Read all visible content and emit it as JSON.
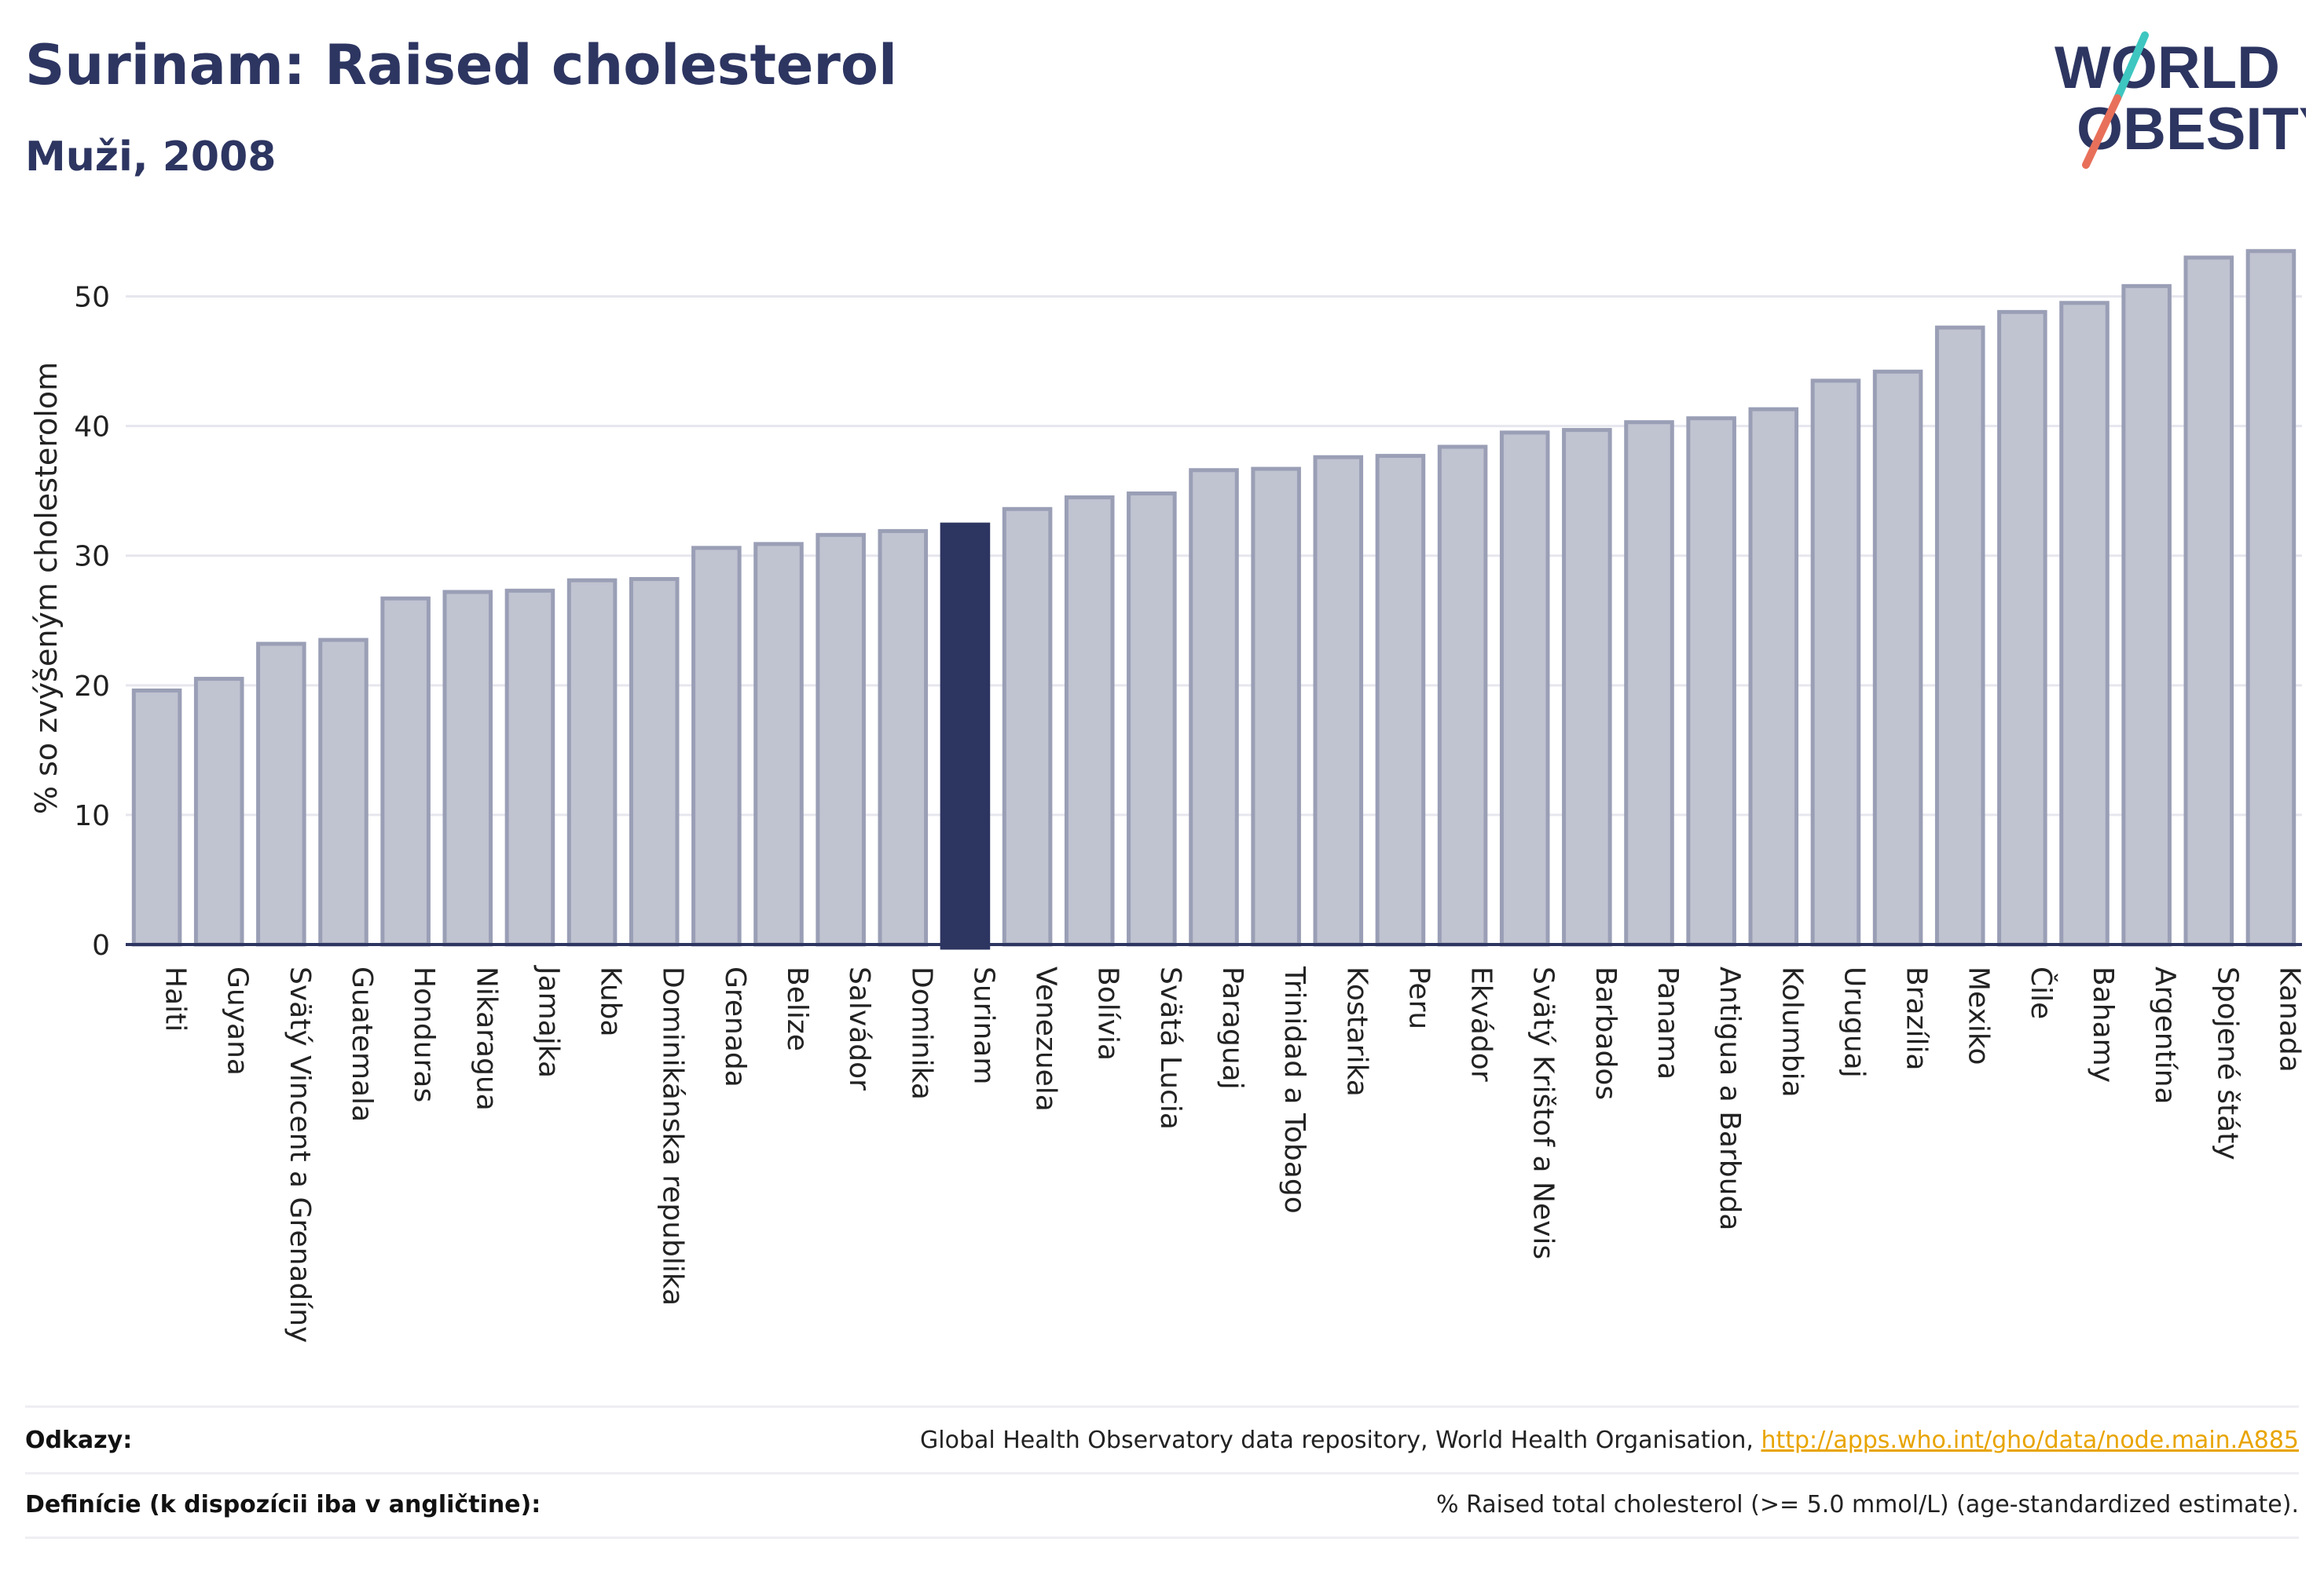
{
  "header": {
    "title": "Surinam: Raised cholesterol",
    "subtitle": "Muži, 2008"
  },
  "logo": {
    "line1": "WORLD",
    "line2": "OBESITY",
    "colors": {
      "text": "#2d3561",
      "slash_top": "#3ec6c0",
      "slash_bottom": "#e8705a"
    }
  },
  "colors": {
    "bar": "#c0c3d0",
    "bar_border": "#9a9fb6",
    "highlight": "#2d3561",
    "grid": "#e6e6ee",
    "axis": "#2d3561"
  },
  "chart_data": {
    "type": "bar",
    "ylabel": "% so zvýšeným cholesterolom",
    "ylim": [
      0,
      55
    ],
    "yticks": [
      0,
      10,
      20,
      30,
      40,
      50
    ],
    "grid": true,
    "highlight": "Surinam",
    "categories": [
      "Haiti",
      "Guyana",
      "Svätý Vincent a Grenadíny",
      "Guatemala",
      "Honduras",
      "Nikaragua",
      "Jamajka",
      "Kuba",
      "Dominikánska republika",
      "Grenada",
      "Belize",
      "Salvádor",
      "Dominika",
      "Surinam",
      "Venezuela",
      "Bolívia",
      "Svätá Lucia",
      "Paraguaj",
      "Trinidad a Tobago",
      "Kostarika",
      "Peru",
      "Ekvádor",
      "Svätý Krištof a Nevis",
      "Barbados",
      "Panama",
      "Antigua a Barbuda",
      "Kolumbia",
      "Uruguaj",
      "Brazília",
      "Mexiko",
      "Čile",
      "Bahamy",
      "Argentína",
      "Spojené štáty",
      "Kanada"
    ],
    "values": [
      19.6,
      20.5,
      23.2,
      23.5,
      26.7,
      27.2,
      27.3,
      28.1,
      28.2,
      30.6,
      30.9,
      31.6,
      31.9,
      32.4,
      33.6,
      34.5,
      34.8,
      36.6,
      36.7,
      37.6,
      37.7,
      38.4,
      39.5,
      39.7,
      40.3,
      40.6,
      41.3,
      43.5,
      44.2,
      47.6,
      48.8,
      49.5,
      50.8,
      53.0,
      53.5
    ]
  },
  "footer": {
    "references_label": "Odkazy:",
    "references_text": "Global Health Observatory data repository, World Health Organisation, ",
    "references_link": "http://apps.who.int/gho/data/node.main.A885",
    "definitions_label": "Definície (k dispozícii iba v angličtine):",
    "definitions_text": "% Raised total cholesterol (>= 5.0 mmol/L) (age-standardized estimate)."
  }
}
